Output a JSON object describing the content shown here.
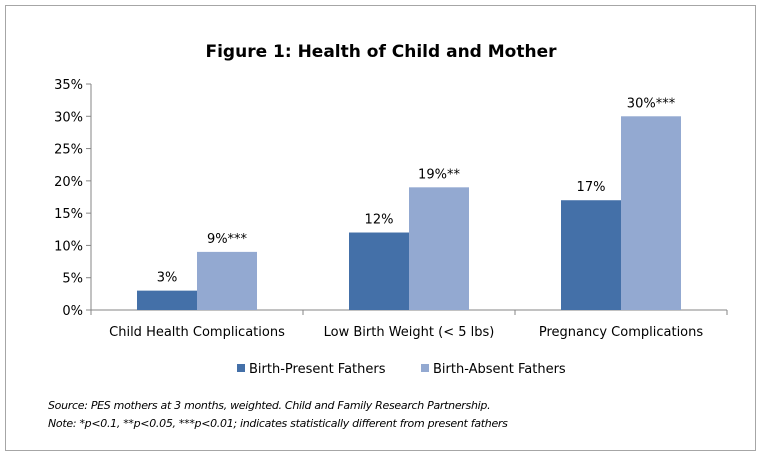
{
  "chart_data": {
    "type": "bar",
    "title": "Figure 1: Health of Child and Mother",
    "categories": [
      "Child Health Complications",
      "Low Birth Weight (< 5 lbs)",
      "Pregnancy Complications"
    ],
    "series": [
      {
        "name": "Birth-Present Fathers",
        "values": [
          3,
          12,
          17
        ],
        "labels": [
          "3%",
          "12%",
          "17%"
        ],
        "color": "#4470a8"
      },
      {
        "name": "Birth-Absent Fathers",
        "values": [
          9,
          19,
          30
        ],
        "labels": [
          "9%***",
          "19%**",
          "30%***"
        ],
        "color": "#93a9d1"
      }
    ],
    "ylim": [
      0,
      35
    ],
    "yticks": [
      0,
      5,
      10,
      15,
      20,
      25,
      30,
      35
    ],
    "ytick_labels": [
      "0%",
      "5%",
      "10%",
      "15%",
      "20%",
      "25%",
      "30%",
      "35%"
    ],
    "grid": false,
    "legend": "bottom"
  },
  "notes": {
    "source": "Source:  PES mothers at 3 months, weighted.  Child and Family Research  Partnership.",
    "note": "Note:  *p<0.1, **p<0.05, ***p<0.01; indicates statistically  different  from present fathers"
  }
}
